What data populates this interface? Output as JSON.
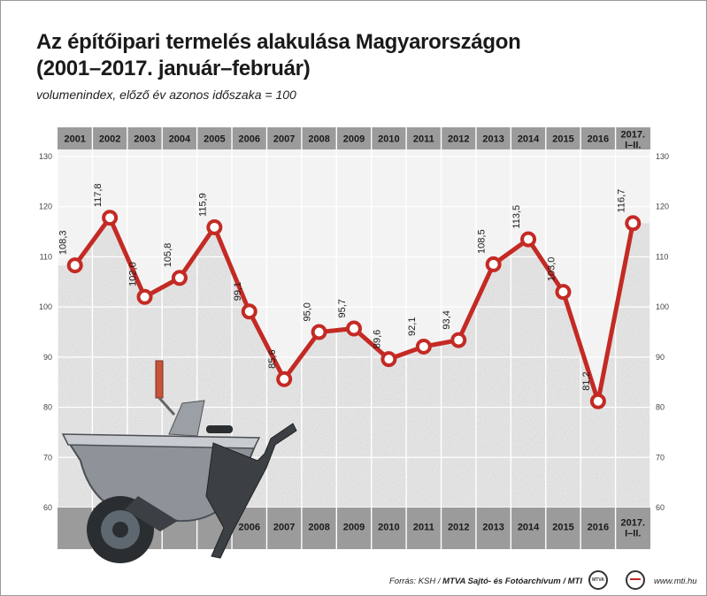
{
  "title_line1": "Az építőipari termelés alakulása Magyarországon",
  "title_line2": "(2001–2017. január–február)",
  "subtitle": "volumenindex, előző év azonos időszaka = 100",
  "colors": {
    "line": "#c42a24",
    "band": "#9b9b9b",
    "grid": "#ffffff",
    "background": "#e6e6e6"
  },
  "chart_data": {
    "type": "line",
    "categories": [
      "2001",
      "2002",
      "2003",
      "2004",
      "2005",
      "2006",
      "2007",
      "2008",
      "2009",
      "2010",
      "2011",
      "2012",
      "2013",
      "2014",
      "2015",
      "2016",
      "2017. I–II."
    ],
    "series": [
      {
        "values": [
          108.3,
          117.8,
          102.0,
          105.8,
          115.9,
          99.1,
          85.6,
          95.0,
          95.7,
          89.6,
          92.1,
          93.4,
          108.5,
          113.5,
          103.0,
          81.2,
          116.7
        ]
      }
    ],
    "data_labels": [
      "108,3",
      "117,8",
      "102,0",
      "105,8",
      "115,9",
      "99,1",
      "85,6",
      "95,0",
      "95,7",
      "89,6",
      "92,1",
      "93,4",
      "108,5",
      "113,5",
      "103,0",
      "81,2",
      "116,7"
    ],
    "ylim": [
      60,
      130
    ],
    "yticks": [
      60,
      70,
      80,
      90,
      100,
      110,
      120,
      130
    ],
    "top_labels": [
      "2001",
      "2002",
      "2003",
      "2004",
      "2005",
      "2006",
      "2007",
      "2008",
      "2009",
      "2010",
      "2011",
      "2012",
      "2013",
      "2014",
      "2015",
      "2016",
      "2017.|I–II."
    ],
    "bottom_labels": [
      "",
      "",
      "",
      "",
      "",
      "2006",
      "2007",
      "2008",
      "2009",
      "2010",
      "2011",
      "2012",
      "2013",
      "2014",
      "2015",
      "2016",
      "2017.|I–II."
    ],
    "grid": true,
    "xlabel": "",
    "ylabel": ""
  },
  "footer": {
    "source_prefix": "Forrás: KSH / ",
    "source_org": "MTVA Sajtó- és Fotóarchívum / MTI",
    "logo_text": "MTVA",
    "site": "www.mti.hu"
  }
}
